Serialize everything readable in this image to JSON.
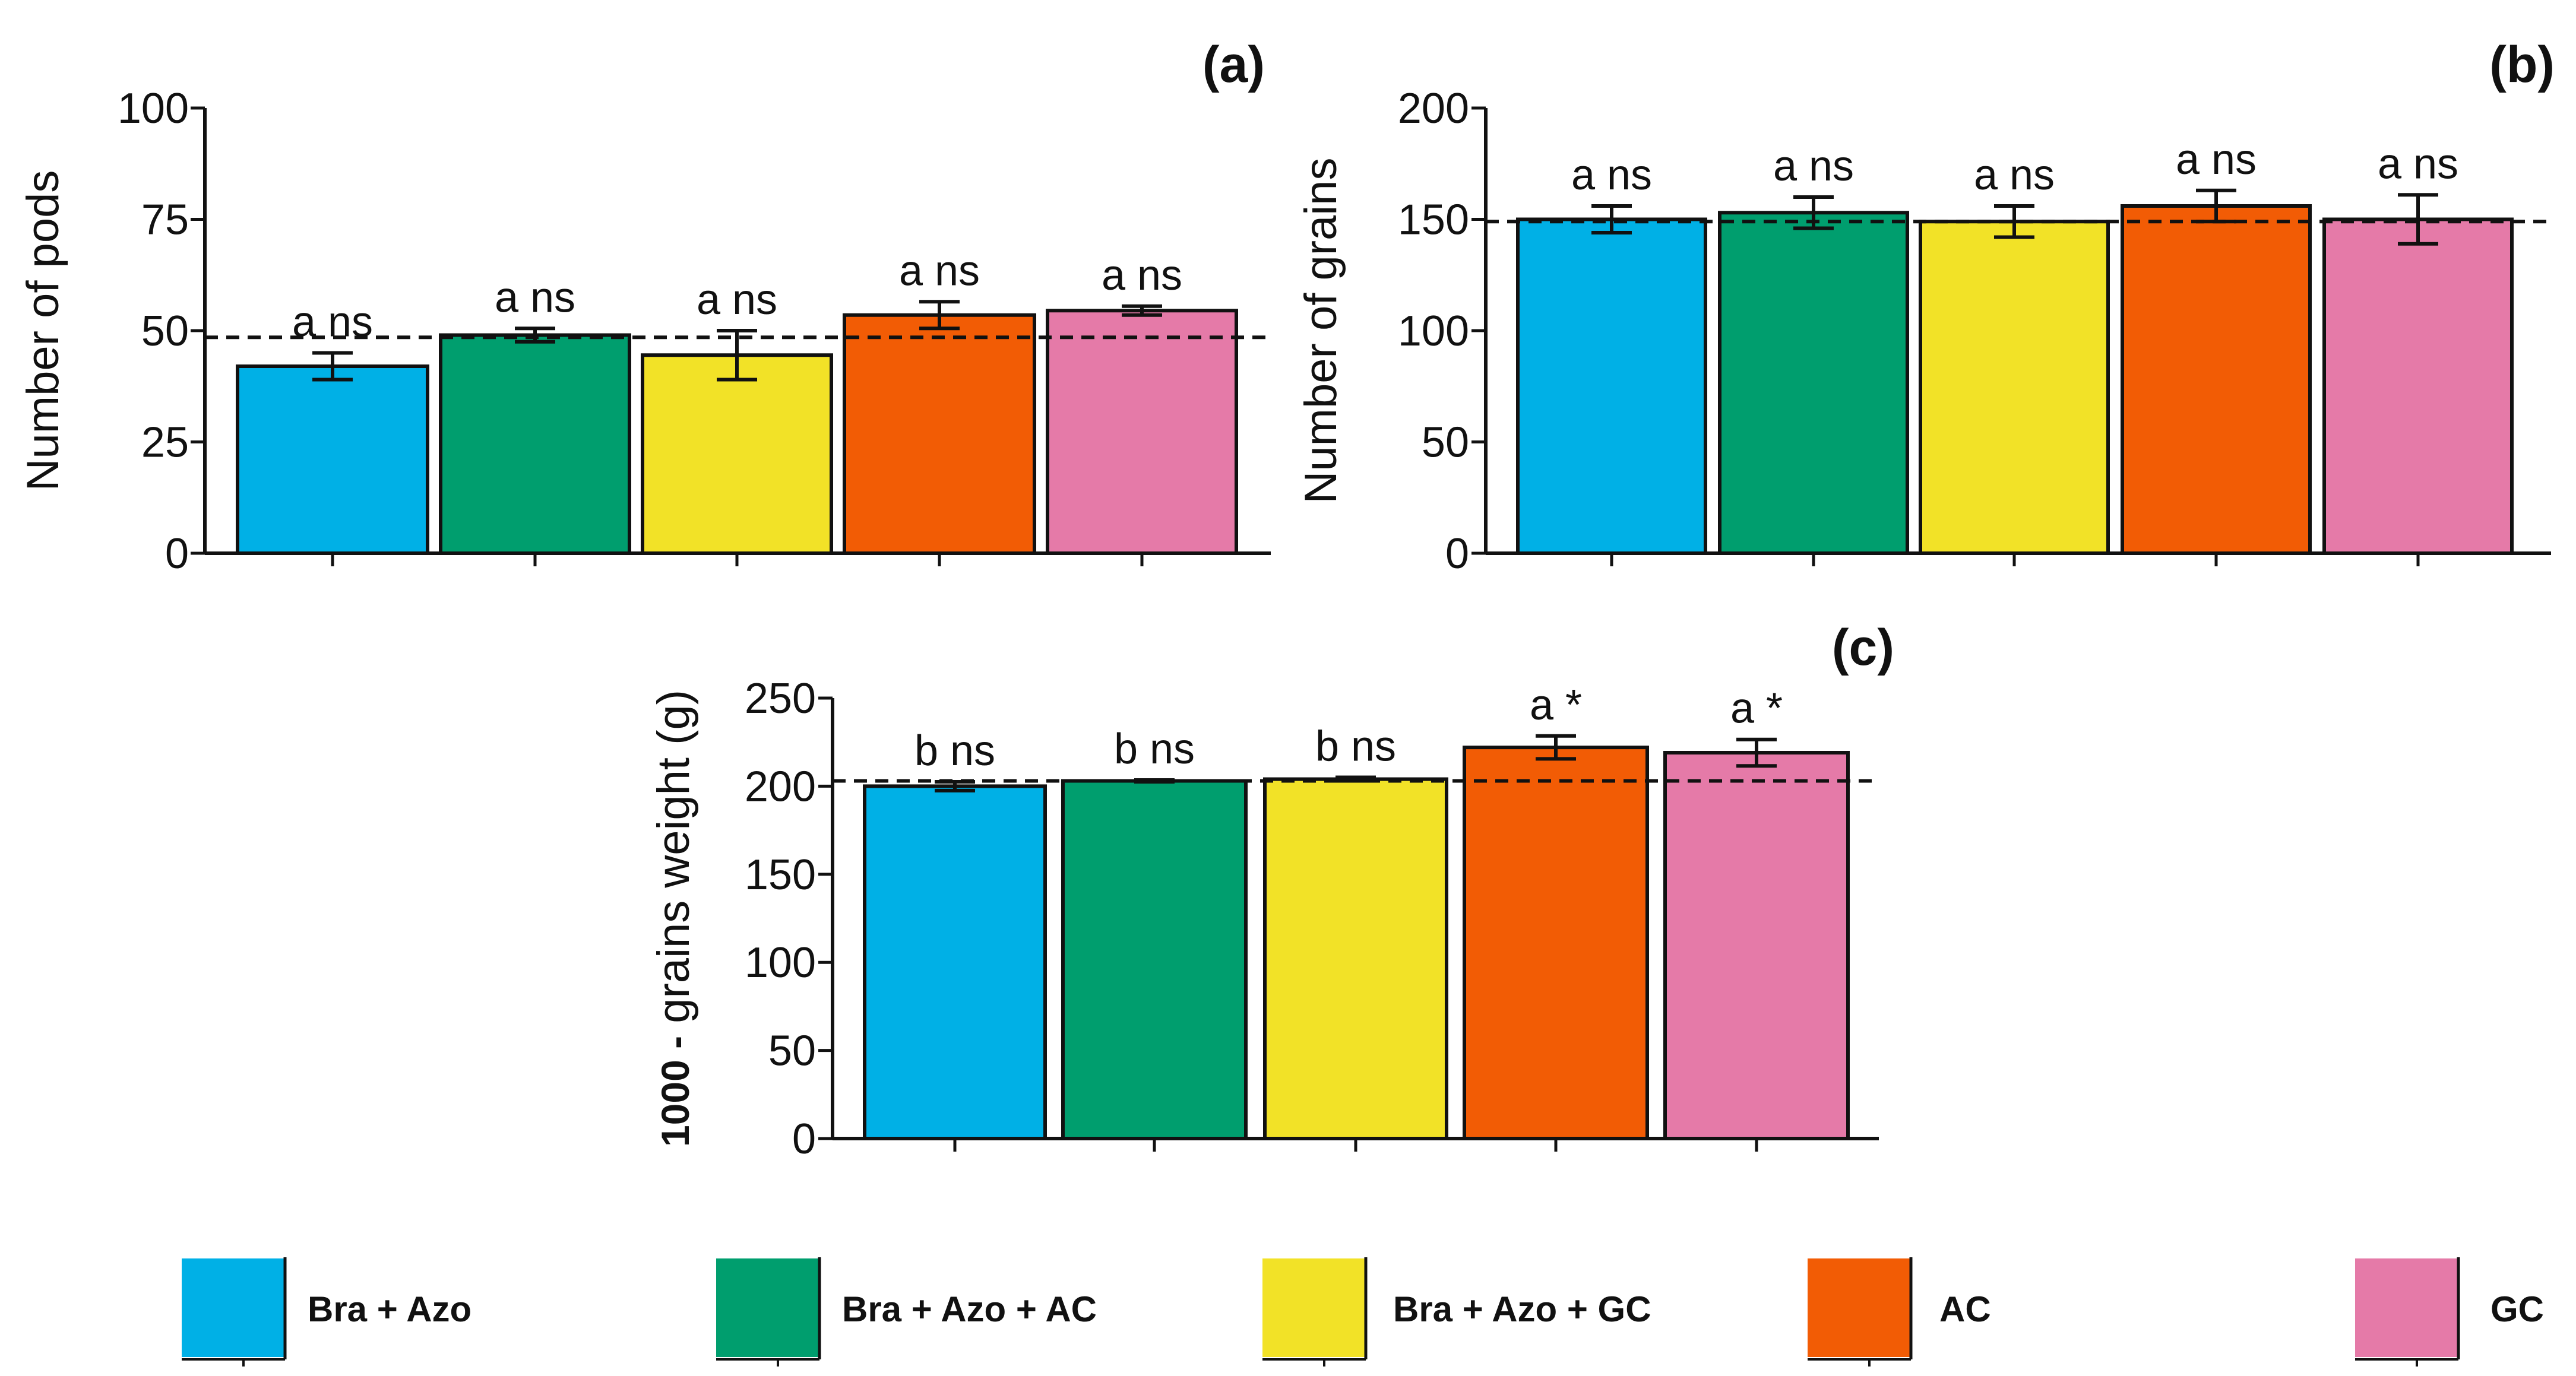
{
  "legend": [
    {
      "label": "Bra + Azo",
      "color": "#00b0e6"
    },
    {
      "label": "Bra + Azo + AC",
      "color": "#009e6e"
    },
    {
      "label": "Bra + Azo + GC",
      "color": "#f2e227"
    },
    {
      "label": "AC",
      "color": "#f25c05"
    },
    {
      "label": "GC",
      "color": "#e57aa8"
    }
  ],
  "chart_data": [
    {
      "type": "bar",
      "panel_label": "(a)",
      "ylabel": "Number of pods",
      "ylabel_bold": false,
      "ylim": [
        0,
        100
      ],
      "yticks": [
        "0",
        "25",
        "50",
        "75",
        "100"
      ],
      "categories": [
        "Bra + Azo",
        "Bra + Azo + AC",
        "Bra + Azo + GC",
        "AC",
        "GC"
      ],
      "values": [
        42,
        49,
        44.5,
        53.5,
        54.5
      ],
      "errors": [
        3,
        1.5,
        5.5,
        3,
        1
      ],
      "labels": [
        "a ns",
        "a ns",
        "a ns",
        "a ns",
        "a ns"
      ],
      "reference_line": 48.5
    },
    {
      "type": "bar",
      "panel_label": "(b)",
      "ylabel": "Number of grains",
      "ylabel_bold": false,
      "ylim": [
        0,
        200
      ],
      "yticks": [
        "0",
        "50",
        "100",
        "150",
        "200"
      ],
      "categories": [
        "Bra + Azo",
        "Bra + Azo + AC",
        "Bra + Azo + GC",
        "AC",
        "GC"
      ],
      "values": [
        150,
        153,
        149,
        156,
        150
      ],
      "errors": [
        6,
        7,
        7,
        7,
        11
      ],
      "labels": [
        "a ns",
        "a ns",
        "a ns",
        "a ns",
        "a ns"
      ],
      "reference_line": 149
    },
    {
      "type": "bar",
      "panel_label": "(c)",
      "ylabel": "1000 -  grains weight (g)",
      "ylabel_bold_part": "1000 -",
      "ylabel_rest": " grains weight (g)",
      "ylim": [
        0,
        250
      ],
      "yticks": [
        "0",
        "50",
        "100",
        "150",
        "200",
        "250"
      ],
      "categories": [
        "Bra + Azo",
        "Bra + Azo + AC",
        "Bra + Azo + GC",
        "AC",
        "GC"
      ],
      "values": [
        200,
        203,
        204,
        222,
        219
      ],
      "errors": [
        2.5,
        0.5,
        1,
        6.5,
        7.5
      ],
      "labels": [
        "b ns",
        "b ns",
        "b ns",
        "a *",
        "a *"
      ],
      "reference_line": 203
    }
  ]
}
